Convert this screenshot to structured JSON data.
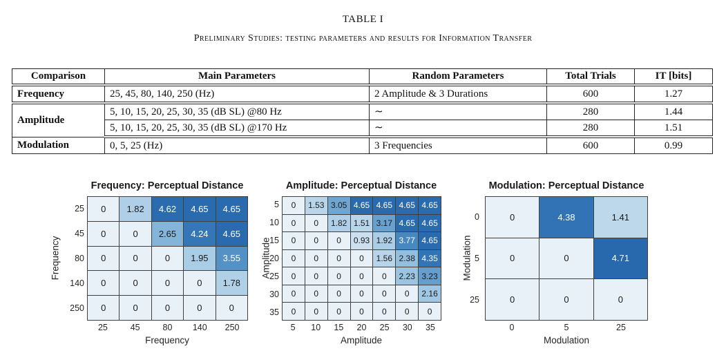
{
  "doc": {
    "caption": "TABLE I",
    "subtitle": "Preliminary Studies: testing parameters and results for Information Transfer"
  },
  "table": {
    "headers": [
      "Comparison",
      "Main Parameters",
      "Random Parameters",
      "Total Trials",
      "IT [bits]"
    ],
    "rows": [
      {
        "comparison": "Frequency",
        "main": "25, 45, 80, 140, 250 (Hz)",
        "random": "2 Amplitude & 3 Durations",
        "trials": "600",
        "it": "1.27"
      },
      {
        "comparison": "Amplitude",
        "main": "5, 10, 15, 20, 25, 30, 35 (dB SL) @80 Hz",
        "random": "∼",
        "trials": "280",
        "it": "1.44"
      },
      {
        "comparison": "",
        "main": "5, 10, 15, 20, 25, 30, 35 (dB SL) @170 Hz",
        "random": "∼",
        "trials": "280",
        "it": "1.51"
      },
      {
        "comparison": "Modulation",
        "main": "0, 5, 25 (Hz)",
        "random": "3 Frequencies",
        "trials": "600",
        "it": "0.99"
      }
    ]
  },
  "heatmap_style": {
    "colormap": [
      {
        "v": 0.0,
        "c": "#e9f1f8"
      },
      {
        "v": 1.0,
        "c": "#cbdfef"
      },
      {
        "v": 2.0,
        "c": "#a8cce5"
      },
      {
        "v": 3.0,
        "c": "#71a8d2"
      },
      {
        "v": 4.0,
        "c": "#3c7eba"
      },
      {
        "v": 4.71,
        "c": "#2869ae"
      }
    ],
    "white_text_threshold": 3.4,
    "grid_color": "#3f3f3f",
    "text_dark": "#1a1a1a",
    "text_light": "#ffffff"
  },
  "chart_data": [
    {
      "type": "heatmap",
      "title": "Frequency: Perceptual Distance",
      "xlabel": "Frequency",
      "ylabel": "Frequency",
      "x_ticks": [
        "25",
        "45",
        "80",
        "140",
        "250"
      ],
      "y_ticks": [
        "25",
        "45",
        "80",
        "140",
        "250"
      ],
      "matrix": [
        [
          0,
          1.82,
          4.62,
          4.65,
          4.65
        ],
        [
          0,
          0,
          2.65,
          4.24,
          4.65
        ],
        [
          0,
          0,
          0,
          1.95,
          3.55
        ],
        [
          0,
          0,
          0,
          0,
          1.78
        ],
        [
          0,
          0,
          0,
          0,
          0
        ]
      ],
      "value_range": [
        0,
        4.71
      ],
      "legend": "none",
      "grid": "on"
    },
    {
      "type": "heatmap",
      "title": "Amplitude: Perceptual Distance",
      "xlabel": "Amplitude",
      "ylabel": "Amplitude",
      "x_ticks": [
        "5",
        "10",
        "15",
        "20",
        "25",
        "30",
        "35"
      ],
      "y_ticks": [
        "5",
        "10",
        "15",
        "20",
        "25",
        "30",
        "35"
      ],
      "matrix": [
        [
          0,
          1.53,
          3.05,
          4.65,
          4.65,
          4.65,
          4.65
        ],
        [
          0,
          0,
          1.82,
          1.51,
          3.17,
          4.65,
          4.65
        ],
        [
          0,
          0,
          0,
          0.93,
          1.92,
          3.77,
          4.65
        ],
        [
          0,
          0,
          0,
          0,
          1.56,
          2.38,
          4.35
        ],
        [
          0,
          0,
          0,
          0,
          0,
          2.23,
          3.23
        ],
        [
          0,
          0,
          0,
          0,
          0,
          0,
          2.16
        ],
        [
          0,
          0,
          0,
          0,
          0,
          0,
          0
        ]
      ],
      "value_range": [
        0,
        4.71
      ],
      "legend": "none",
      "grid": "on"
    },
    {
      "type": "heatmap",
      "title": "Modulation: Perceptual Distance",
      "xlabel": "Modulation",
      "ylabel": "Modulation",
      "x_ticks": [
        "0",
        "5",
        "25"
      ],
      "y_ticks": [
        "0",
        "5",
        "25"
      ],
      "matrix": [
        [
          0,
          4.38,
          1.41
        ],
        [
          0,
          0,
          4.71
        ],
        [
          0,
          0,
          0
        ]
      ],
      "value_range": [
        0,
        4.71
      ],
      "legend": "none",
      "grid": "on"
    }
  ]
}
